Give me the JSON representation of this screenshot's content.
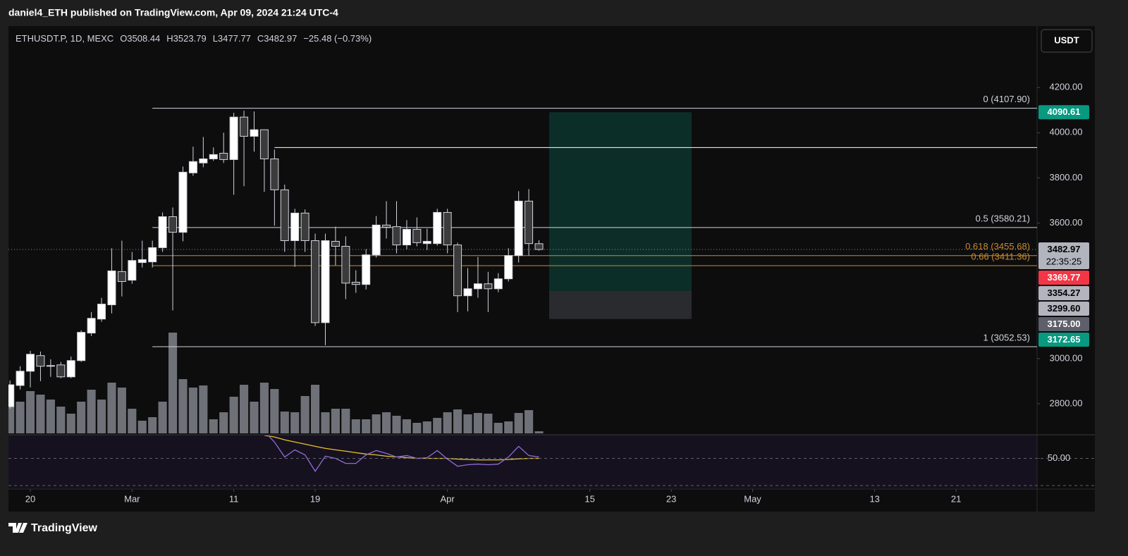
{
  "page": {
    "publisher": "daniel4_ETH published on TradingView.com, Apr 09, 2024 21:24 UTC-4",
    "brand": "TradingView",
    "currency": "USDT"
  },
  "chart_data": {
    "type": "candlestick",
    "legend": {
      "symbol": "ETHUSDT.P, 1D, MEXC",
      "open": "O3508.44",
      "high": "H3523.79",
      "low": "L3477.77",
      "close": "C3482.97",
      "change": "−25.48 (−0.73%)"
    },
    "x": [
      0,
      1,
      2,
      3,
      4,
      5,
      6,
      7,
      8,
      9,
      10,
      11,
      12,
      13,
      14,
      15,
      16,
      17,
      18,
      19,
      20,
      21,
      22,
      23,
      24,
      25,
      26,
      27,
      28,
      29,
      30,
      31,
      32,
      33,
      34,
      35,
      36,
      37,
      38,
      39,
      40,
      41,
      42,
      43,
      44,
      45,
      46,
      47,
      48,
      49,
      50,
      51,
      52
    ],
    "open": [
      2787,
      2881,
      2944,
      3013,
      2969,
      2972,
      2919,
      2991,
      3113,
      3175,
      3238,
      3385,
      3347,
      3425,
      3428,
      3491,
      3628,
      3559,
      3822,
      3866,
      3884,
      3909,
      3881,
      4069,
      3984,
      4013,
      3884,
      3747,
      3522,
      3644,
      3522,
      3159,
      3519,
      3497,
      3338,
      3328,
      3459,
      3591,
      3584,
      3503,
      3572,
      3509,
      3509,
      3647,
      3503,
      3278,
      3309,
      3331,
      3309,
      3353,
      3456,
      3697,
      3508.44
    ],
    "high": [
      2903,
      2966,
      3034,
      3031,
      2997,
      2985,
      3009,
      3125,
      3206,
      3269,
      3488,
      3522,
      3472,
      3522,
      3522,
      3647,
      3669,
      3850,
      3938,
      3981,
      3935,
      4000,
      4088,
      4097,
      4094,
      4013,
      3925,
      3770,
      3663,
      3660,
      3553,
      3553,
      3584,
      3541,
      3391,
      3484,
      3631,
      3697,
      3697,
      3613,
      3625,
      3575,
      3663,
      3663,
      3513,
      3400,
      3450,
      3384,
      3378,
      3488,
      3741,
      3750,
      3523.79
    ],
    "low": [
      2778,
      2863,
      2872,
      2900,
      2919,
      2913,
      2913,
      2985,
      3100,
      3163,
      3200,
      3275,
      3331,
      3403,
      3403,
      3472,
      3213,
      3519,
      3809,
      3847,
      3875,
      3866,
      3725,
      3763,
      3916,
      3738,
      3588,
      3472,
      3406,
      3472,
      3144,
      3059,
      3413,
      3263,
      3291,
      3306,
      3447,
      3531,
      3466,
      3484,
      3497,
      3481,
      3500,
      3466,
      3206,
      3209,
      3269,
      3206,
      3294,
      3341,
      3425,
      3456,
      3477.77
    ],
    "close": [
      2884,
      2944,
      3019,
      2966,
      2966,
      2919,
      2991,
      3116,
      3178,
      3241,
      3388,
      3341,
      3434,
      3438,
      3491,
      3628,
      3559,
      3825,
      3872,
      3884,
      3903,
      3881,
      4069,
      3984,
      4013,
      3884,
      3747,
      3522,
      3644,
      3522,
      3159,
      3522,
      3497,
      3334,
      3328,
      3459,
      3591,
      3581,
      3503,
      3572,
      3513,
      3519,
      3647,
      3503,
      3278,
      3309,
      3331,
      3309,
      3353,
      3456,
      3697,
      3509,
      3482.97
    ],
    "volume": [
      69,
      45,
      60,
      55,
      48,
      38,
      28,
      45,
      62,
      48,
      72,
      65,
      35,
      18,
      23,
      45,
      143,
      77,
      65,
      68,
      20,
      30,
      52,
      69,
      45,
      72,
      63,
      31,
      30,
      53,
      69,
      30,
      35,
      35,
      20,
      20,
      27,
      30,
      25,
      20,
      15,
      17,
      22,
      30,
      34,
      27,
      29,
      28,
      15,
      17,
      29,
      33,
      3
    ],
    "rsi": [
      null,
      null,
      null,
      null,
      null,
      null,
      null,
      null,
      null,
      null,
      null,
      null,
      null,
      null,
      null,
      null,
      null,
      null,
      null,
      null,
      null,
      null,
      null,
      null,
      null,
      70,
      62,
      51,
      56.3,
      52.6,
      40.5,
      51.6,
      50,
      46.3,
      46.3,
      52.6,
      55.8,
      53.7,
      51,
      52.1,
      50,
      50.5,
      55.8,
      49.5,
      44.2,
      45.3,
      45.8,
      45.3,
      45.8,
      51,
      58.9,
      52.1,
      51
    ],
    "rsi_ma": [
      null,
      null,
      null,
      null,
      null,
      null,
      null,
      null,
      null,
      null,
      null,
      null,
      null,
      null,
      null,
      null,
      null,
      null,
      null,
      null,
      null,
      null,
      null,
      null,
      null,
      67,
      65.8,
      63.7,
      62.1,
      60.5,
      58.9,
      57.4,
      56.3,
      55.3,
      54.2,
      53.2,
      52.6,
      51.6,
      51.1,
      50.5,
      50,
      50,
      50,
      50,
      49.5,
      49.2,
      48.9,
      48.9,
      48.9,
      49.2,
      49.7,
      50,
      50
    ],
    "up_color": "#ffffff",
    "down_color": "#3b3b3b",
    "wick_color": "#d1d4dc",
    "volume_color": "#6f7179",
    "rsi_color": "#8e6bd8",
    "rsi_ma_color": "#e8c12a",
    "xlim": [
      -0.15,
      100.96
    ],
    "xticks": [
      {
        "value": 2,
        "label": "20"
      },
      {
        "value": 12,
        "label": "Mar"
      },
      {
        "value": 22,
        "label": "11"
      },
      {
        "value": 30,
        "label": "19"
      },
      {
        "value": 43,
        "label": "Apr"
      },
      {
        "value": 57,
        "label": "15"
      },
      {
        "value": 65,
        "label": "23"
      },
      {
        "value": 73,
        "label": "May"
      },
      {
        "value": 85,
        "label": "13"
      },
      {
        "value": 93,
        "label": "21"
      }
    ],
    "ylim": [
      2662.5,
      4471.9
    ],
    "yticks": [
      {
        "value": 2800,
        "label": "2800.00"
      },
      {
        "value": 3000,
        "label": "3000.00"
      },
      {
        "value": 3600,
        "label": "3600.00"
      },
      {
        "value": 3800,
        "label": "3800.00"
      },
      {
        "value": 4000,
        "label": "4000.00"
      },
      {
        "value": 4200,
        "label": "4200.00"
      }
    ],
    "rsi_ylim": [
      27.9,
      67.4
    ],
    "rsi_yticks": [
      {
        "value": 50,
        "label": "50.00"
      }
    ],
    "rsi_levels": [
      50,
      30
    ],
    "levels": [
      {
        "label": "0 (4107.90)",
        "value": 4107.9,
        "color": "#d1d4dc",
        "start": 14
      },
      {
        "label": "0.5 (3580.21)",
        "value": 3580.21,
        "color": "#d1d4dc",
        "start": 14
      },
      {
        "label": "0.618 (3455.68)",
        "value": 3455.68,
        "color": "#c98b2c",
        "start": 14
      },
      {
        "label": "0.66 (3411.36)",
        "value": 3411.36,
        "color": "#c98b2c",
        "start": 14
      },
      {
        "label": "1 (3052.53)",
        "value": 3052.53,
        "color": "#d1d4dc",
        "start": 14
      }
    ],
    "ray": {
      "value": 3934,
      "start": 26,
      "color": "#ffffff"
    },
    "position": {
      "entry": 3299.6,
      "target": 4090.61,
      "stop": 3175,
      "start": 53,
      "end": 67,
      "profit_color": "#0c2e28",
      "loss_color": "#2a2b2f"
    },
    "price_labels": [
      {
        "value": 4090.61,
        "label": "4090.61",
        "bg": "#089981",
        "fg": "#ffffff"
      },
      {
        "value": 3482.97,
        "label": "3482.97",
        "sublabel": "22:35:25",
        "bg": "#b2b5be",
        "fg": "#000000"
      },
      {
        "value": 3369.77,
        "label": "3369.77",
        "bg": "#f23645",
        "fg": "#ffffff"
      },
      {
        "value": 3354.27,
        "label": "3354.27",
        "bg": "#b2b5be",
        "fg": "#000000"
      },
      {
        "value": 3299.6,
        "label": "3299.60",
        "bg": "#b2b5be",
        "fg": "#000000"
      },
      {
        "value": 3175,
        "label": "3175.00",
        "bg": "#5d606b",
        "fg": "#ffffff"
      },
      {
        "value": 3172.65,
        "label": "3172.65",
        "bg": "#089981",
        "fg": "#ffffff"
      }
    ]
  }
}
